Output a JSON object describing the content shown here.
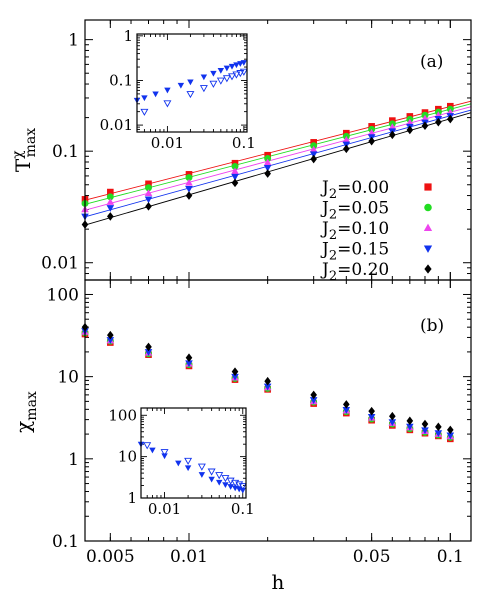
{
  "figure": {
    "xlabel": "h",
    "x_ticks": [
      {
        "v": 0.005,
        "label": "0.005"
      },
      {
        "v": 0.01,
        "label": "0.01"
      },
      {
        "v": 0.05,
        "label": "0.05"
      },
      {
        "v": 0.1,
        "label": "0.1"
      }
    ]
  },
  "legend": [
    {
      "label": "J2=0.00",
      "base": "J",
      "sub": "2",
      "rest": "=0.00",
      "color": "#ee1111",
      "marker": "square"
    },
    {
      "label": "J2=0.05",
      "base": "J",
      "sub": "2",
      "rest": "=0.05",
      "color": "#22dd22",
      "marker": "circle"
    },
    {
      "label": "J2=0.10",
      "base": "J",
      "sub": "2",
      "rest": "=0.10",
      "color": "#ee44ee",
      "marker": "triangle-up"
    },
    {
      "label": "J2=0.15",
      "base": "J",
      "sub": "2",
      "rest": "=0.15",
      "color": "#1133ee",
      "marker": "triangle-down"
    },
    {
      "label": "J2=0.20",
      "base": "J",
      "sub": "2",
      "rest": "=0.20",
      "color": "#000000",
      "marker": "diamond"
    }
  ],
  "chart_data": [
    {
      "type": "scatter",
      "panel_label": "(a)",
      "ylabel": "T^χ_max",
      "ylabel_base": "T",
      "ylabel_sup": "χ",
      "ylabel_sub": "max",
      "xscale": "log",
      "yscale": "log",
      "xlim": [
        0.004,
        0.12
      ],
      "ylim": [
        0.007,
        1.5
      ],
      "x_ticks": [
        0.005,
        0.01,
        0.05,
        0.1
      ],
      "y_ticks": [
        {
          "v": 0.01,
          "label": "0.01"
        },
        {
          "v": 0.1,
          "label": "0.1"
        },
        {
          "v": 1,
          "label": "1"
        }
      ],
      "fit_lines": true,
      "x": [
        0.004,
        0.005,
        0.007,
        0.01,
        0.015,
        0.02,
        0.03,
        0.04,
        0.05,
        0.06,
        0.07,
        0.08,
        0.09,
        0.1
      ],
      "series": [
        {
          "name": "J2=0.00",
          "values": [
            0.037,
            0.043,
            0.051,
            0.062,
            0.078,
            0.092,
            0.12,
            0.145,
            0.167,
            0.188,
            0.205,
            0.222,
            0.238,
            0.253
          ]
        },
        {
          "name": "J2=0.05",
          "values": [
            0.034,
            0.039,
            0.047,
            0.058,
            0.073,
            0.086,
            0.112,
            0.136,
            0.157,
            0.176,
            0.193,
            0.21,
            0.224,
            0.238
          ]
        },
        {
          "name": "J2=0.10",
          "values": [
            0.03,
            0.035,
            0.042,
            0.052,
            0.066,
            0.079,
            0.103,
            0.126,
            0.146,
            0.164,
            0.18,
            0.196,
            0.21,
            0.222
          ]
        },
        {
          "name": "J2=0.15",
          "values": [
            0.026,
            0.031,
            0.037,
            0.046,
            0.059,
            0.071,
            0.094,
            0.115,
            0.134,
            0.151,
            0.166,
            0.181,
            0.195,
            0.207
          ]
        },
        {
          "name": "J2=0.20",
          "values": [
            0.022,
            0.026,
            0.032,
            0.04,
            0.052,
            0.063,
            0.085,
            0.105,
            0.123,
            0.14,
            0.155,
            0.169,
            0.182,
            0.194
          ]
        }
      ],
      "inset": {
        "xlim": [
          0.004,
          0.11
        ],
        "ylim": [
          0.007,
          1.1
        ],
        "x_ticks": [
          {
            "v": 0.01,
            "label": "0.01"
          },
          {
            "v": 0.1,
            "label": "0.1"
          }
        ],
        "y_ticks": [
          {
            "v": 0.01,
            "label": "0.01"
          },
          {
            "v": 0.1,
            "label": "0.1"
          },
          {
            "v": 1,
            "label": "1"
          }
        ],
        "filled": {
          "marker": "triangle-down",
          "color": "#1133ee",
          "x": [
            0.004,
            0.005,
            0.007,
            0.01,
            0.015,
            0.02,
            0.03,
            0.04,
            0.05,
            0.06,
            0.07,
            0.08,
            0.09,
            0.1
          ],
          "y": [
            0.036,
            0.041,
            0.05,
            0.061,
            0.078,
            0.093,
            0.12,
            0.145,
            0.168,
            0.19,
            0.208,
            0.225,
            0.24,
            0.253
          ]
        },
        "open": {
          "marker": "triangle-down-open",
          "color": "#1133ee",
          "x": [
            0.005,
            0.01,
            0.02,
            0.03,
            0.04,
            0.05,
            0.06,
            0.07,
            0.08,
            0.09,
            0.1
          ],
          "y": [
            0.02,
            0.031,
            0.05,
            0.068,
            0.085,
            0.1,
            0.113,
            0.125,
            0.137,
            0.148,
            0.158
          ]
        }
      }
    },
    {
      "type": "scatter",
      "panel_label": "(b)",
      "ylabel": "χ_max",
      "ylabel_base": "χ",
      "ylabel_sub": "max",
      "xscale": "log",
      "yscale": "log",
      "xlim": [
        0.004,
        0.12
      ],
      "ylim": [
        0.1,
        150
      ],
      "x_ticks": [
        0.005,
        0.01,
        0.05,
        0.1
      ],
      "y_ticks": [
        {
          "v": 0.1,
          "label": "0.1"
        },
        {
          "v": 1,
          "label": "1"
        },
        {
          "v": 10,
          "label": "10"
        },
        {
          "v": 100,
          "label": "100"
        }
      ],
      "x": [
        0.004,
        0.005,
        0.007,
        0.01,
        0.015,
        0.02,
        0.03,
        0.04,
        0.05,
        0.06,
        0.07,
        0.08,
        0.09,
        0.1
      ],
      "series": [
        {
          "name": "J2=0.00",
          "values": [
            33,
            26,
            18.5,
            13.5,
            9.2,
            7.0,
            4.7,
            3.6,
            2.95,
            2.55,
            2.25,
            2.05,
            1.9,
            1.75
          ]
        },
        {
          "name": "J2=0.05",
          "values": [
            34,
            27,
            19,
            14,
            9.5,
            7.2,
            4.9,
            3.75,
            3.05,
            2.65,
            2.32,
            2.1,
            1.95,
            1.82
          ]
        },
        {
          "name": "J2=0.10",
          "values": [
            35,
            27.5,
            19.5,
            14.3,
            9.7,
            7.4,
            5.0,
            3.85,
            3.15,
            2.72,
            2.4,
            2.17,
            2.0,
            1.87
          ]
        },
        {
          "name": "J2=0.15",
          "values": [
            36,
            28,
            20,
            14.6,
            10,
            7.6,
            5.2,
            3.95,
            3.25,
            2.8,
            2.47,
            2.23,
            2.06,
            1.93
          ]
        },
        {
          "name": "J2=0.20",
          "values": [
            40,
            32,
            23,
            17,
            11.5,
            8.8,
            6.0,
            4.6,
            3.8,
            3.3,
            2.9,
            2.65,
            2.45,
            2.25
          ]
        }
      ],
      "inset": {
        "xlim": [
          0.005,
          0.11
        ],
        "ylim": [
          1,
          150
        ],
        "x_ticks": [
          {
            "v": 0.01,
            "label": "0.01"
          },
          {
            "v": 0.1,
            "label": "0.1"
          }
        ],
        "y_ticks": [
          {
            "v": 1,
            "label": "1"
          },
          {
            "v": 10,
            "label": "10"
          },
          {
            "v": 100,
            "label": "100"
          }
        ],
        "filled": {
          "marker": "triangle-down",
          "color": "#1133ee",
          "x": [
            0.005,
            0.007,
            0.01,
            0.015,
            0.02,
            0.03,
            0.04,
            0.05,
            0.06,
            0.07,
            0.08,
            0.09,
            0.1
          ],
          "y": [
            20,
            14.5,
            10.5,
            7.0,
            5.4,
            3.7,
            2.85,
            2.4,
            2.1,
            1.9,
            1.75,
            1.65,
            1.55
          ]
        },
        "open": {
          "marker": "triangle-down-open",
          "color": "#1133ee",
          "x": [
            0.006,
            0.01,
            0.02,
            0.03,
            0.04,
            0.05,
            0.06,
            0.07,
            0.08,
            0.09,
            0.1
          ],
          "y": [
            19,
            13,
            8.0,
            5.8,
            4.4,
            3.6,
            3.05,
            2.65,
            2.35,
            2.15,
            1.95
          ]
        }
      }
    }
  ]
}
